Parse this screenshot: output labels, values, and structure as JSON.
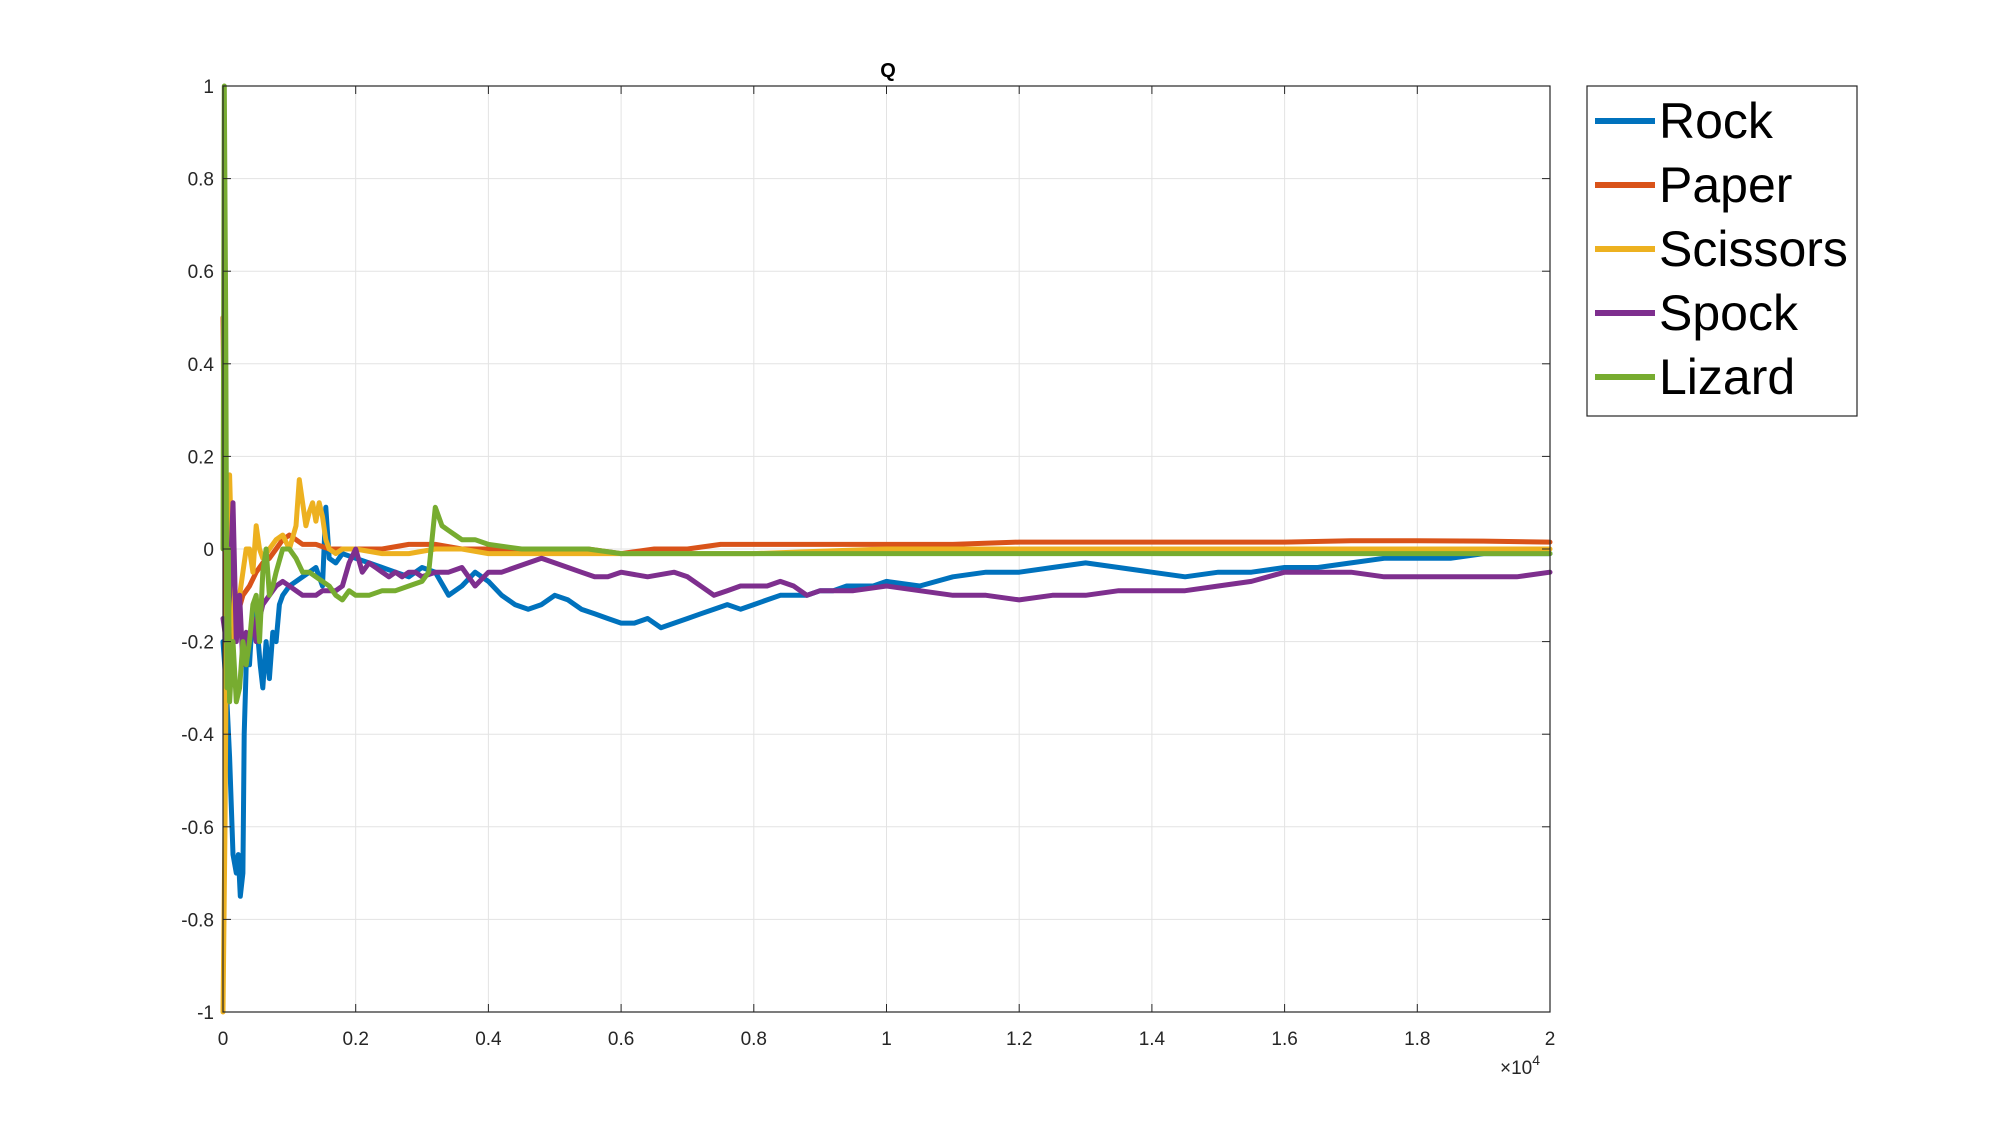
{
  "chart_data": {
    "type": "line",
    "title": "Q",
    "xlabel": "",
    "ylabel": "",
    "xlim": [
      0,
      20000
    ],
    "ylim": [
      -1,
      1
    ],
    "x_exponent_label": "×10",
    "x_exponent_power": "4",
    "x_ticks": [
      0,
      2000,
      4000,
      6000,
      8000,
      10000,
      12000,
      14000,
      16000,
      18000,
      20000
    ],
    "x_tick_labels": [
      "0",
      "0.2",
      "0.4",
      "0.6",
      "0.8",
      "1",
      "1.2",
      "1.4",
      "1.6",
      "1.8",
      "2"
    ],
    "y_ticks": [
      -1,
      -0.8,
      -0.6,
      -0.4,
      -0.2,
      0,
      0.2,
      0.4,
      0.6,
      0.8,
      1
    ],
    "y_tick_labels": [
      "-1",
      "-0.8",
      "-0.6",
      "-0.4",
      "-0.2",
      "0",
      "0.2",
      "0.4",
      "0.6",
      "0.8",
      "1"
    ],
    "grid": true,
    "legend_position": "outside-top-right",
    "series": [
      {
        "name": "Rock",
        "color": "#0072BD",
        "x": [
          0,
          50,
          100,
          150,
          200,
          230,
          260,
          300,
          320,
          360,
          400,
          440,
          480,
          520,
          560,
          600,
          650,
          700,
          750,
          800,
          850,
          900,
          1000,
          1100,
          1200,
          1300,
          1400,
          1500,
          1550,
          1600,
          1700,
          1800,
          2000,
          2200,
          2400,
          2600,
          2800,
          3000,
          3200,
          3400,
          3600,
          3800,
          4000,
          4200,
          4400,
          4600,
          4800,
          5000,
          5200,
          5400,
          5600,
          5800,
          6000,
          6200,
          6400,
          6600,
          6800,
          7000,
          7200,
          7400,
          7600,
          7800,
          8000,
          8200,
          8400,
          8600,
          8800,
          9000,
          9200,
          9400,
          9600,
          9800,
          10000,
          10500,
          11000,
          11500,
          12000,
          12500,
          13000,
          13500,
          14000,
          14500,
          15000,
          15500,
          16000,
          16500,
          17000,
          17500,
          18000,
          18500,
          19000,
          19500,
          20000
        ],
        "values": [
          -0.2,
          -0.3,
          -0.45,
          -0.66,
          -0.7,
          -0.66,
          -0.75,
          -0.7,
          -0.4,
          -0.2,
          -0.25,
          -0.15,
          -0.12,
          -0.18,
          -0.25,
          -0.3,
          -0.2,
          -0.28,
          -0.18,
          -0.2,
          -0.12,
          -0.1,
          -0.08,
          -0.07,
          -0.06,
          -0.05,
          -0.04,
          -0.08,
          0.09,
          -0.02,
          -0.03,
          -0.01,
          -0.02,
          -0.03,
          -0.04,
          -0.05,
          -0.06,
          -0.04,
          -0.05,
          -0.1,
          -0.08,
          -0.05,
          -0.07,
          -0.1,
          -0.12,
          -0.13,
          -0.12,
          -0.1,
          -0.11,
          -0.13,
          -0.14,
          -0.15,
          -0.16,
          -0.16,
          -0.15,
          -0.17,
          -0.16,
          -0.15,
          -0.14,
          -0.13,
          -0.12,
          -0.13,
          -0.12,
          -0.11,
          -0.1,
          -0.1,
          -0.1,
          -0.09,
          -0.09,
          -0.08,
          -0.08,
          -0.08,
          -0.07,
          -0.08,
          -0.06,
          -0.05,
          -0.05,
          -0.04,
          -0.03,
          -0.04,
          -0.05,
          -0.06,
          -0.05,
          -0.05,
          -0.04,
          -0.04,
          -0.03,
          -0.02,
          -0.02,
          -0.02,
          -0.01,
          -0.01,
          -0.01
        ]
      },
      {
        "name": "Paper",
        "color": "#D95319",
        "x": [
          0,
          50,
          100,
          200,
          300,
          400,
          500,
          600,
          700,
          800,
          900,
          1000,
          1100,
          1200,
          1400,
          1600,
          1800,
          2000,
          2400,
          2800,
          3200,
          3600,
          4000,
          4500,
          5000,
          5500,
          6000,
          6500,
          7000,
          7500,
          8000,
          8500,
          9000,
          9500,
          10000,
          11000,
          12000,
          13000,
          14000,
          15000,
          16000,
          17000,
          18000,
          19000,
          20000
        ],
        "values": [
          0.5,
          -0.3,
          -0.2,
          -0.15,
          -0.1,
          -0.08,
          -0.05,
          -0.03,
          -0.02,
          0.0,
          0.02,
          0.03,
          0.02,
          0.01,
          0.01,
          0.0,
          0.0,
          0.0,
          0.0,
          0.01,
          0.01,
          0.0,
          0.0,
          0.0,
          0.0,
          0.0,
          -0.01,
          0.0,
          0.0,
          0.01,
          0.01,
          0.01,
          0.01,
          0.01,
          0.01,
          0.01,
          0.015,
          0.015,
          0.015,
          0.015,
          0.015,
          0.018,
          0.018,
          0.017,
          0.015
        ]
      },
      {
        "name": "Scissors",
        "color": "#EDB120",
        "x": [
          0,
          30,
          60,
          100,
          130,
          170,
          200,
          250,
          300,
          350,
          400,
          450,
          500,
          550,
          600,
          700,
          800,
          900,
          1000,
          1100,
          1150,
          1200,
          1250,
          1300,
          1350,
          1400,
          1450,
          1500,
          1550,
          1600,
          1700,
          1800,
          2000,
          2400,
          2800,
          3200,
          3600,
          4000,
          5000,
          6000,
          7000,
          8000,
          9000,
          10000,
          12000,
          14000,
          16000,
          18000,
          20000
        ],
        "values": [
          -1,
          -0.6,
          0.0,
          0.16,
          0.0,
          -0.2,
          -0.15,
          -0.1,
          -0.05,
          0.0,
          0.0,
          -0.05,
          0.05,
          0.0,
          -0.02,
          0.0,
          0.02,
          0.03,
          0.0,
          0.05,
          0.15,
          0.1,
          0.05,
          0.08,
          0.1,
          0.06,
          0.1,
          0.07,
          0.02,
          0.0,
          -0.01,
          0.0,
          0.0,
          -0.01,
          -0.01,
          0.0,
          0.0,
          -0.01,
          -0.01,
          -0.01,
          -0.01,
          -0.01,
          -0.005,
          0.0,
          0.0,
          0.0,
          0.0,
          0.0,
          0.0
        ]
      },
      {
        "name": "Spock",
        "color": "#7E2F8E",
        "x": [
          0,
          50,
          100,
          150,
          200,
          250,
          300,
          350,
          400,
          450,
          500,
          550,
          600,
          700,
          800,
          900,
          1000,
          1100,
          1200,
          1300,
          1400,
          1500,
          1600,
          1700,
          1800,
          1900,
          2000,
          2100,
          2200,
          2300,
          2400,
          2500,
          2600,
          2700,
          2800,
          2900,
          3000,
          3200,
          3400,
          3600,
          3800,
          4000,
          4200,
          4400,
          4600,
          4800,
          5000,
          5200,
          5400,
          5600,
          5800,
          6000,
          6400,
          6800,
          7000,
          7200,
          7400,
          7600,
          7800,
          8000,
          8200,
          8400,
          8600,
          8800,
          9000,
          9500,
          10000,
          10500,
          11000,
          11500,
          12000,
          12500,
          13000,
          13500,
          14000,
          14500,
          15000,
          15500,
          16000,
          16500,
          17000,
          17500,
          18000,
          18500,
          19000,
          19500,
          20000
        ],
        "values": [
          -0.15,
          -0.2,
          -0.1,
          0.1,
          -0.2,
          -0.1,
          -0.25,
          -0.18,
          -0.2,
          -0.15,
          -0.2,
          -0.15,
          -0.12,
          -0.1,
          -0.08,
          -0.07,
          -0.08,
          -0.09,
          -0.1,
          -0.1,
          -0.1,
          -0.09,
          -0.09,
          -0.09,
          -0.08,
          -0.03,
          0.0,
          -0.05,
          -0.03,
          -0.04,
          -0.05,
          -0.06,
          -0.05,
          -0.06,
          -0.05,
          -0.05,
          -0.06,
          -0.05,
          -0.05,
          -0.04,
          -0.08,
          -0.05,
          -0.05,
          -0.04,
          -0.03,
          -0.02,
          -0.03,
          -0.04,
          -0.05,
          -0.06,
          -0.06,
          -0.05,
          -0.06,
          -0.05,
          -0.06,
          -0.08,
          -0.1,
          -0.09,
          -0.08,
          -0.08,
          -0.08,
          -0.07,
          -0.08,
          -0.1,
          -0.09,
          -0.09,
          -0.08,
          -0.09,
          -0.1,
          -0.1,
          -0.11,
          -0.1,
          -0.1,
          -0.09,
          -0.09,
          -0.09,
          -0.08,
          -0.07,
          -0.05,
          -0.05,
          -0.05,
          -0.06,
          -0.06,
          -0.06,
          -0.06,
          -0.06,
          -0.05
        ]
      },
      {
        "name": "Lizard",
        "color": "#77AC30",
        "x": [
          0,
          20,
          40,
          60,
          80,
          100,
          150,
          200,
          250,
          300,
          350,
          400,
          450,
          500,
          550,
          600,
          650,
          700,
          750,
          800,
          900,
          1000,
          1100,
          1200,
          1300,
          1400,
          1500,
          1600,
          1700,
          1800,
          1900,
          2000,
          2200,
          2400,
          2600,
          2800,
          3000,
          3100,
          3150,
          3200,
          3300,
          3400,
          3500,
          3600,
          3800,
          4000,
          4500,
          5000,
          5500,
          6000,
          7000,
          8000,
          9000,
          10000,
          12000,
          14000,
          16000,
          18000,
          20000
        ],
        "values": [
          0.0,
          1.0,
          0.5,
          -0.3,
          0.0,
          -0.33,
          -0.2,
          -0.33,
          -0.3,
          -0.2,
          -0.25,
          -0.2,
          -0.12,
          -0.1,
          -0.2,
          -0.05,
          0.0,
          -0.1,
          -0.08,
          -0.05,
          0.0,
          0.0,
          -0.02,
          -0.05,
          -0.05,
          -0.06,
          -0.07,
          -0.08,
          -0.1,
          -0.11,
          -0.09,
          -0.1,
          -0.1,
          -0.09,
          -0.09,
          -0.08,
          -0.07,
          -0.05,
          0.02,
          0.09,
          0.05,
          0.04,
          0.03,
          0.02,
          0.02,
          0.01,
          0.0,
          0.0,
          0.0,
          -0.01,
          -0.01,
          -0.01,
          -0.01,
          -0.01,
          -0.01,
          -0.01,
          -0.01,
          -0.01,
          -0.01
        ]
      }
    ]
  }
}
